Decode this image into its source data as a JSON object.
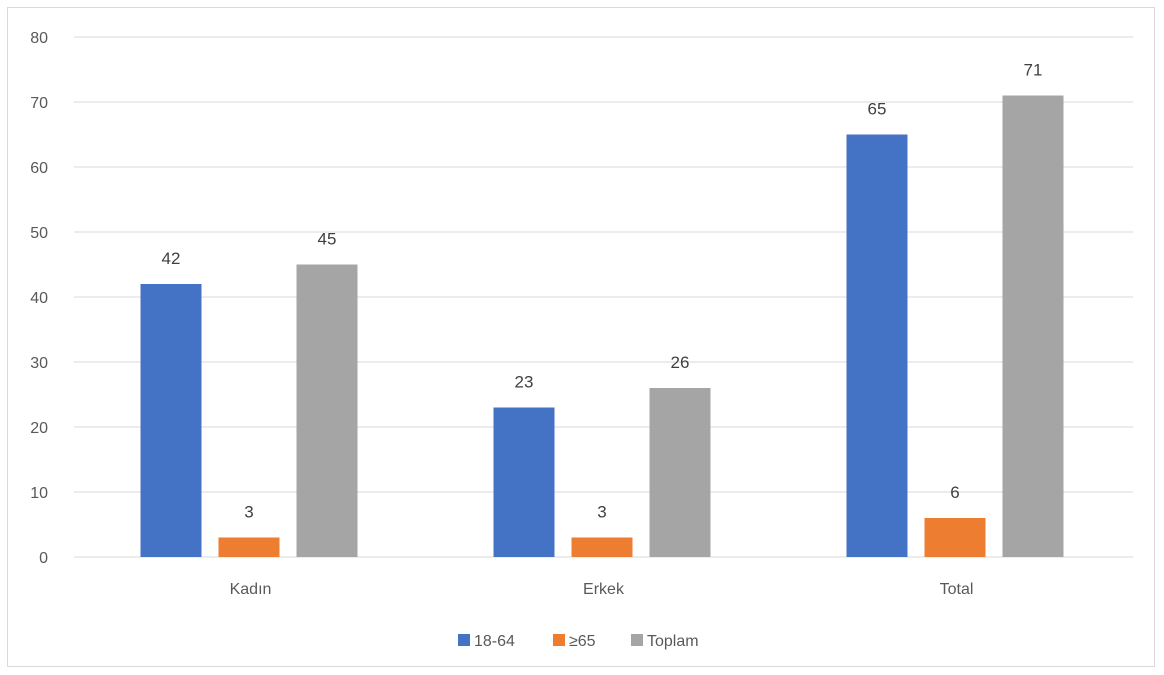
{
  "chart_data": {
    "type": "bar",
    "categories": [
      "Kadın",
      "Erkek",
      "Total"
    ],
    "series": [
      {
        "name": "18-64",
        "values": [
          42,
          23,
          65
        ],
        "color": "#4472C4"
      },
      {
        "name": "≥65",
        "values": [
          3,
          3,
          6
        ],
        "color": "#ED7D31"
      },
      {
        "name": "Toplam",
        "values": [
          45,
          26,
          71
        ],
        "color": "#A5A5A5"
      }
    ],
    "title": "",
    "xlabel": "",
    "ylabel": "",
    "ylim": [
      0,
      80
    ],
    "yticks": [
      "0",
      "10",
      "20",
      "30",
      "40",
      "50",
      "60",
      "70",
      "80"
    ],
    "grid": true,
    "gridline_color": "#d9d9d9",
    "legend_position": "bottom",
    "data_labels": true
  }
}
